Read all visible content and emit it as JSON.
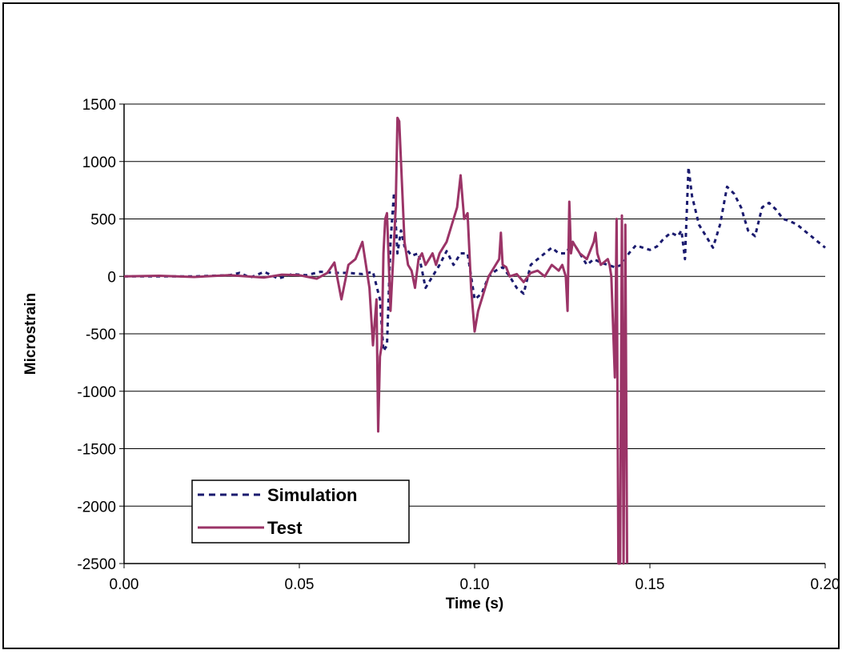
{
  "chart_data": {
    "type": "line",
    "title": "",
    "xlabel": "Time (s)",
    "ylabel": "Microstrain",
    "xlim": [
      0,
      0.2
    ],
    "ylim": [
      -2500,
      1500
    ],
    "xticks": [
      0,
      0.05,
      0.1,
      0.15,
      0.2
    ],
    "xtick_labels": [
      "0.00",
      "0.05",
      "0.10",
      "0.15",
      "0.20"
    ],
    "yticks": [
      1500,
      1000,
      500,
      0,
      -500,
      -1000,
      -1500,
      -2000,
      -2500
    ],
    "ytick_labels": [
      "1500",
      "1000",
      "500",
      "0",
      "-500",
      "-1000",
      "-1500",
      "-2000",
      "-2500"
    ],
    "grid": "horizontal major",
    "legend_position": "bottom-left",
    "colors": {
      "simulation": "#1a1a6e",
      "test": "#9b3467"
    },
    "series": [
      {
        "name": "Simulation",
        "style": "dotted",
        "x": [
          0,
          0.01,
          0.02,
          0.025,
          0.03,
          0.033,
          0.036,
          0.04,
          0.044,
          0.048,
          0.052,
          0.056,
          0.06,
          0.064,
          0.068,
          0.071,
          0.073,
          0.074,
          0.075,
          0.076,
          0.077,
          0.078,
          0.079,
          0.08,
          0.082,
          0.084,
          0.086,
          0.088,
          0.09,
          0.092,
          0.094,
          0.096,
          0.098,
          0.1,
          0.102,
          0.104,
          0.106,
          0.108,
          0.11,
          0.112,
          0.114,
          0.116,
          0.118,
          0.12,
          0.122,
          0.124,
          0.126,
          0.128,
          0.13,
          0.132,
          0.134,
          0.136,
          0.138,
          0.14,
          0.142,
          0.144,
          0.146,
          0.148,
          0.15,
          0.152,
          0.154,
          0.156,
          0.158,
          0.159,
          0.16,
          0.161,
          0.162,
          0.164,
          0.166,
          0.168,
          0.17,
          0.172,
          0.174,
          0.176,
          0.178,
          0.18,
          0.182,
          0.184,
          0.186,
          0.188,
          0.19,
          0.192,
          0.194,
          0.196,
          0.198,
          0.2
        ],
        "y": [
          0,
          0,
          0,
          5,
          10,
          30,
          -10,
          40,
          -20,
          20,
          10,
          40,
          30,
          30,
          20,
          40,
          -200,
          -650,
          -600,
          300,
          730,
          200,
          400,
          260,
          180,
          200,
          -100,
          0,
          100,
          220,
          100,
          200,
          200,
          -200,
          -150,
          0,
          50,
          80,
          0,
          -100,
          -150,
          100,
          150,
          200,
          250,
          200,
          200,
          300,
          200,
          100,
          150,
          120,
          100,
          80,
          100,
          200,
          270,
          250,
          230,
          260,
          330,
          380,
          350,
          400,
          150,
          950,
          700,
          450,
          350,
          250,
          450,
          780,
          720,
          600,
          400,
          350,
          600,
          640,
          580,
          500,
          480,
          450,
          400,
          350,
          300,
          250
        ]
      },
      {
        "name": "Test",
        "style": "solid",
        "x": [
          0,
          0.01,
          0.02,
          0.03,
          0.04,
          0.045,
          0.05,
          0.055,
          0.058,
          0.06,
          0.062,
          0.064,
          0.066,
          0.068,
          0.07,
          0.071,
          0.072,
          0.0725,
          0.073,
          0.0735,
          0.074,
          0.0745,
          0.075,
          0.076,
          0.077,
          0.0775,
          0.078,
          0.0785,
          0.079,
          0.08,
          0.081,
          0.082,
          0.083,
          0.084,
          0.085,
          0.086,
          0.087,
          0.088,
          0.089,
          0.09,
          0.092,
          0.094,
          0.095,
          0.096,
          0.097,
          0.098,
          0.099,
          0.1,
          0.101,
          0.102,
          0.104,
          0.106,
          0.107,
          0.1075,
          0.108,
          0.109,
          0.11,
          0.112,
          0.114,
          0.116,
          0.118,
          0.12,
          0.122,
          0.124,
          0.125,
          0.126,
          0.1265,
          0.127,
          0.1275,
          0.128,
          0.13,
          0.132,
          0.134,
          0.1345,
          0.135,
          0.136,
          0.138,
          0.1385,
          0.139,
          0.14,
          0.1405,
          0.141,
          0.1415,
          0.142,
          0.1425,
          0.143,
          0.1435
        ],
        "y": [
          0,
          5,
          -5,
          10,
          -10,
          15,
          10,
          -20,
          30,
          120,
          -200,
          100,
          150,
          300,
          -100,
          -600,
          -200,
          -1350,
          -700,
          -600,
          200,
          500,
          550,
          -300,
          300,
          600,
          1380,
          1350,
          1000,
          300,
          100,
          50,
          -100,
          150,
          200,
          100,
          150,
          200,
          100,
          200,
          300,
          500,
          600,
          880,
          500,
          550,
          -100,
          -480,
          -300,
          -200,
          0,
          100,
          150,
          380,
          100,
          80,
          0,
          20,
          -50,
          30,
          50,
          0,
          100,
          50,
          100,
          0,
          -300,
          650,
          200,
          300,
          200,
          150,
          300,
          380,
          200,
          100,
          150,
          100,
          0,
          -880,
          500,
          -2500,
          -2500,
          530,
          -2500,
          450,
          -2500
        ]
      }
    ]
  }
}
